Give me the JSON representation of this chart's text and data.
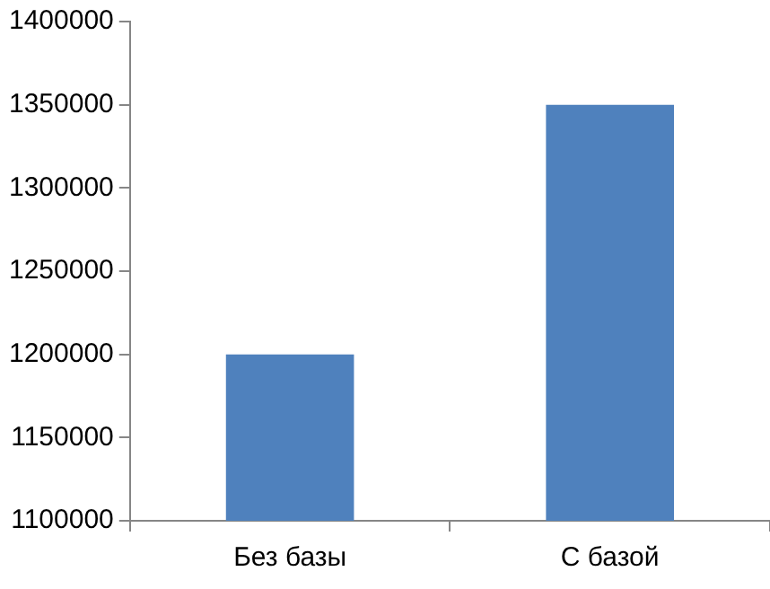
{
  "chart_data": {
    "type": "bar",
    "categories": [
      "Без базы",
      "С базой"
    ],
    "values": [
      1200000,
      1350000
    ],
    "color": "#4f81bd",
    "ylim": [
      1100000,
      1400000
    ],
    "yticks": [
      1100000,
      1150000,
      1200000,
      1250000,
      1300000,
      1350000,
      1400000
    ],
    "grid": false,
    "legend": false
  }
}
